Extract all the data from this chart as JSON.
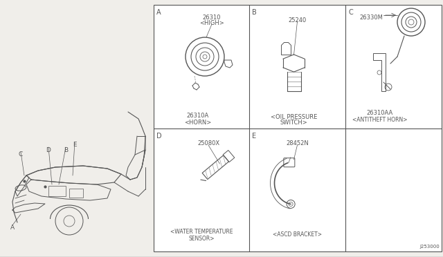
{
  "bg_color": "#f0eeea",
  "panel_bg": "#ffffff",
  "line_color": "#888888",
  "dark_line": "#555555",
  "text_color": "#333333",
  "diagram_number": "J253000",
  "panel_A": {
    "label": "A",
    "part_num_top": "26310",
    "part_num_top2": "<HIGH>",
    "part_num_bot": "26310A",
    "desc": "<HORN>"
  },
  "panel_B": {
    "label": "B",
    "part_num_top": "25240",
    "desc": "<OIL PRESSURE\nSWITCH>"
  },
  "panel_C": {
    "label": "C",
    "part_num_top": "26330M",
    "part_num_bot": "26310AA",
    "desc": "<ANTITHEFT HORN>"
  },
  "panel_D": {
    "label": "D",
    "part_num_top": "25080X",
    "desc": "<WATER TEMPERATURE\nSENSOR>"
  },
  "panel_E": {
    "label": "E",
    "part_num_top": "28452N",
    "desc": "<ASCD BRACKET>"
  }
}
